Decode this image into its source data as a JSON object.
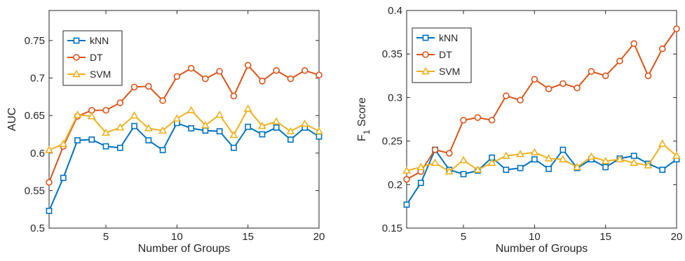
{
  "chart_data": [
    {
      "type": "line",
      "xlabel": "Number of Groups",
      "ylabel": "AUC",
      "xlim": [
        1,
        20
      ],
      "ylim": [
        0.5,
        0.79
      ],
      "xticks": [
        5,
        10,
        15,
        20
      ],
      "yticks": [
        0.5,
        0.55,
        0.6,
        0.65,
        0.7,
        0.75
      ],
      "ytick_labels": [
        "0.5",
        "0.55",
        "0.6",
        "0.65",
        "0.7",
        "0.75"
      ],
      "grid": false,
      "legend_position": "top-left",
      "x": [
        1,
        2,
        3,
        4,
        5,
        6,
        7,
        8,
        9,
        10,
        11,
        12,
        13,
        14,
        15,
        16,
        17,
        18,
        19,
        20
      ],
      "series": [
        {
          "name": "kNN",
          "color": "#0072BD",
          "marker": "square",
          "values": [
            0.523,
            0.567,
            0.617,
            0.618,
            0.609,
            0.607,
            0.636,
            0.617,
            0.604,
            0.64,
            0.633,
            0.63,
            0.629,
            0.607,
            0.635,
            0.625,
            0.634,
            0.618,
            0.634,
            0.622
          ]
        },
        {
          "name": "DT",
          "color": "#D95319",
          "marker": "circle",
          "values": [
            0.561,
            0.609,
            0.649,
            0.657,
            0.657,
            0.667,
            0.688,
            0.689,
            0.67,
            0.702,
            0.713,
            0.699,
            0.709,
            0.676,
            0.717,
            0.696,
            0.71,
            0.699,
            0.71,
            0.704
          ]
        },
        {
          "name": "SVM",
          "color": "#EDB120",
          "marker": "triangle",
          "values": [
            0.604,
            0.612,
            0.651,
            0.649,
            0.627,
            0.634,
            0.65,
            0.633,
            0.63,
            0.646,
            0.657,
            0.637,
            0.651,
            0.624,
            0.659,
            0.636,
            0.642,
            0.629,
            0.639,
            0.629
          ]
        }
      ]
    },
    {
      "type": "line",
      "xlabel": "Number of Groups",
      "ylabel": "F",
      "ylabel_subscript": "1",
      "ylabel_suffix": "Score",
      "xlim": [
        1,
        20
      ],
      "ylim": [
        0.15,
        0.4
      ],
      "xticks": [
        5,
        10,
        15,
        20
      ],
      "yticks": [
        0.15,
        0.2,
        0.25,
        0.3,
        0.35,
        0.4
      ],
      "ytick_labels": [
        "0.15",
        "0.2",
        "0.25",
        "0.3",
        "0.35",
        "0.4"
      ],
      "grid": false,
      "legend_position": "top-left",
      "x": [
        1,
        2,
        3,
        4,
        5,
        6,
        7,
        8,
        9,
        10,
        11,
        12,
        13,
        14,
        15,
        16,
        17,
        18,
        19,
        20
      ],
      "series": [
        {
          "name": "kNN",
          "color": "#0072BD",
          "marker": "square",
          "values": [
            0.177,
            0.202,
            0.24,
            0.217,
            0.212,
            0.216,
            0.231,
            0.217,
            0.219,
            0.229,
            0.218,
            0.24,
            0.219,
            0.229,
            0.22,
            0.23,
            0.233,
            0.224,
            0.217,
            0.229
          ]
        },
        {
          "name": "DT",
          "color": "#D95319",
          "marker": "circle",
          "values": [
            0.206,
            0.215,
            0.24,
            0.236,
            0.274,
            0.277,
            0.274,
            0.302,
            0.297,
            0.321,
            0.31,
            0.316,
            0.311,
            0.33,
            0.325,
            0.342,
            0.362,
            0.325,
            0.356,
            0.379
          ]
        },
        {
          "name": "SVM",
          "color": "#EDB120",
          "marker": "triangle",
          "values": [
            0.216,
            0.22,
            0.225,
            0.215,
            0.228,
            0.217,
            0.225,
            0.233,
            0.235,
            0.237,
            0.23,
            0.229,
            0.22,
            0.232,
            0.227,
            0.229,
            0.225,
            0.222,
            0.247,
            0.233
          ]
        }
      ]
    }
  ]
}
